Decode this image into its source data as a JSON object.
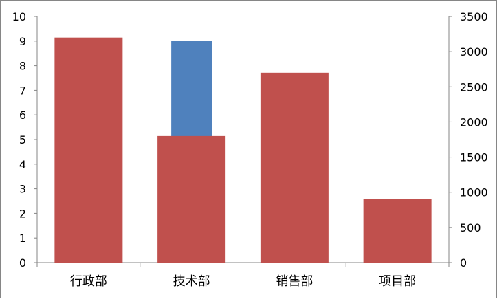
{
  "chart_data": {
    "type": "bar",
    "categories": [
      "行政部",
      "技术部",
      "销售部",
      "项目部"
    ],
    "y_left": {
      "min": 0,
      "max": 10,
      "step": 1,
      "ticks": [
        "0",
        "1",
        "2",
        "3",
        "4",
        "5",
        "6",
        "7",
        "8",
        "9",
        "10"
      ]
    },
    "y_right": {
      "min": 0,
      "max": 3500,
      "step": 500,
      "ticks": [
        "0",
        "500",
        "1000",
        "1500",
        "2000",
        "2500",
        "3000",
        "3500"
      ]
    },
    "series": [
      {
        "axis": "left",
        "color": "#4F81BD",
        "values": [
          null,
          9,
          null,
          null
        ]
      },
      {
        "axis": "right",
        "color": "#C0504D",
        "values": [
          3200,
          1800,
          2700,
          900
        ]
      }
    ],
    "grid": false,
    "legend": "none"
  }
}
